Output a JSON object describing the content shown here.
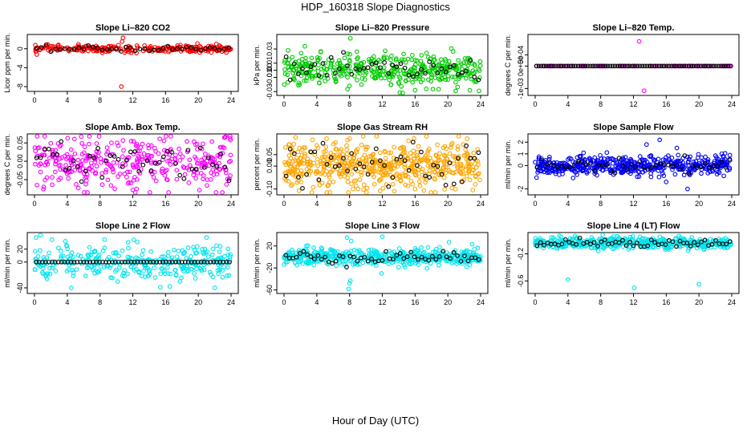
{
  "figure": {
    "title": "HDP_160318  Slope Diagnostics",
    "xlabel": "Hour of Day (UTC)"
  },
  "chart_data": [
    {
      "type": "scatter",
      "title": "Slope Li–820 CO2",
      "ylabel": "Licor ppm per min.",
      "color": "#ff0000",
      "xlim": [
        0,
        24
      ],
      "xticks": [
        "0",
        "4",
        "8",
        "12",
        "16",
        "20",
        "24"
      ],
      "ylim": [
        -8.5,
        2.5
      ],
      "yticks": [
        {
          "v": -8,
          "l": "-8"
        },
        {
          "v": -4,
          "l": "-4"
        },
        {
          "v": 0,
          "l": "0"
        }
      ],
      "n": 260,
      "center": 0.0,
      "spread": 0.35,
      "black_n": 42,
      "black_spread": 0.3,
      "outliers": [
        [
          10.6,
          -8.0
        ],
        [
          10.8,
          2.3
        ],
        [
          10.7,
          1.5
        ],
        [
          11.0,
          -0.8
        ],
        [
          19.9,
          1.1
        ],
        [
          1.6,
          0.9
        ]
      ],
      "grid": false,
      "legend": "none"
    },
    {
      "type": "scatter",
      "title": "Slope Li–820 Pressure",
      "ylabel": "kPa per min.",
      "color": "#00cc00",
      "xlim": [
        0,
        24
      ],
      "xticks": [
        "0",
        "4",
        "8",
        "12",
        "16",
        "20",
        "24"
      ],
      "ylim": [
        -0.032,
        0.047
      ],
      "yticks": [
        {
          "v": -0.03,
          "l": "-0.03"
        },
        {
          "v": -0.01,
          "l": "-0.01"
        },
        {
          "v": 0.0,
          "l": "0.00"
        },
        {
          "v": 0.01,
          "l": "0.01"
        },
        {
          "v": 0.03,
          "l": "0.03"
        }
      ],
      "n": 420,
      "center": 0.0,
      "spread": 0.011,
      "black_n": 48,
      "black_spread": 0.008,
      "outliers": [
        [
          8.1,
          0.045
        ],
        [
          0.5,
          0.028
        ],
        [
          23.8,
          -0.029
        ],
        [
          16.0,
          -0.028
        ],
        [
          8.0,
          -0.022
        ]
      ],
      "grid": false,
      "legend": "none"
    },
    {
      "type": "scatter",
      "title": "Slope Li–820 Temp.",
      "ylabel": "degrees C per min.",
      "color": "#ff00ff",
      "xlim": [
        0,
        24
      ],
      "xticks": [
        "0",
        "4",
        "8",
        "12",
        "16",
        "20",
        "24"
      ],
      "ylim": [
        -0.0012,
        0.0013
      ],
      "yticks": [
        {
          "v": -0.001,
          "l": "-1e-03"
        },
        {
          "v": 0,
          "l": "0e+00"
        },
        {
          "v": 0.0005,
          "l": "5e-04"
        }
      ],
      "n": 80,
      "center": 0.0,
      "spread": 0.0,
      "black_n": 80,
      "black_spread": 0.0,
      "outliers": [
        [
          12.7,
          0.0011
        ],
        [
          13.3,
          -0.0011
        ]
      ],
      "grid": false,
      "legend": "none"
    },
    {
      "type": "scatter",
      "title": "Slope Amb. Box Temp.",
      "ylabel": "degrees C per min.",
      "color": "#ff00ff",
      "xlim": [
        0,
        24
      ],
      "xticks": [
        "0",
        "4",
        "8",
        "12",
        "16",
        "20",
        "24"
      ],
      "ylim": [
        -0.085,
        0.068
      ],
      "yticks": [
        {
          "v": -0.05,
          "l": "-0.05"
        },
        {
          "v": 0.0,
          "l": "0.00"
        },
        {
          "v": 0.05,
          "l": "0.05"
        }
      ],
      "n": 360,
      "center": 0.0,
      "spread": 0.035,
      "black_n": 48,
      "black_spread": 0.025,
      "outliers": [
        [
          12.0,
          -0.078
        ],
        [
          9.8,
          -0.075
        ],
        [
          23.9,
          0.062
        ],
        [
          0.3,
          -0.065
        ]
      ],
      "grid": false,
      "legend": "none"
    },
    {
      "type": "scatter",
      "title": "Slope Gas Stream RH",
      "ylabel": "percent per min.",
      "color": "#ffa500",
      "xlim": [
        0,
        24
      ],
      "xticks": [
        "0",
        "4",
        "8",
        "12",
        "16",
        "20",
        "24"
      ],
      "ylim": [
        -0.115,
        0.13
      ],
      "yticks": [
        {
          "v": -0.1,
          "l": "-0.10"
        },
        {
          "v": 0.0,
          "l": "0.00"
        },
        {
          "v": 0.05,
          "l": "0.05"
        }
      ],
      "n": 560,
      "center": 0.0,
      "spread": 0.05,
      "black_n": 48,
      "black_spread": 0.04,
      "outliers": [
        [
          16.0,
          -0.1
        ],
        [
          5.2,
          0.12
        ],
        [
          8.0,
          0.12
        ],
        [
          1.0,
          -0.08
        ]
      ],
      "grid": false,
      "legend": "none"
    },
    {
      "type": "scatter",
      "title": "Slope Sample Flow",
      "ylabel": "ml/min per min.",
      "color": "#0000ff",
      "xlim": [
        0,
        24
      ],
      "xticks": [
        "0",
        "4",
        "8",
        "12",
        "16",
        "20",
        "24"
      ],
      "ylim": [
        -2.3,
        2.5
      ],
      "yticks": [
        {
          "v": -2,
          "l": "-2"
        },
        {
          "v": 0,
          "l": "0"
        },
        {
          "v": 1,
          "l": "1"
        },
        {
          "v": 2,
          "l": "2"
        }
      ],
      "n": 500,
      "center": 0.0,
      "spread": 0.4,
      "black_n": 48,
      "black_spread": 0.3,
      "outliers": [
        [
          15.2,
          2.2
        ],
        [
          17.3,
          1.5
        ],
        [
          18.6,
          -2.0
        ],
        [
          13.6,
          1.8
        ],
        [
          16.0,
          -1.4
        ]
      ],
      "grid": false,
      "legend": "none"
    },
    {
      "type": "scatter",
      "title": "Slope Line 2 Flow",
      "ylabel": "ml/min per min.",
      "color": "#00e5ee",
      "xlim": [
        0,
        24
      ],
      "xticks": [
        "0",
        "4",
        "8",
        "12",
        "16",
        "20",
        "24"
      ],
      "ylim": [
        -45,
        42
      ],
      "yticks": [
        {
          "v": -40,
          "l": "-40"
        },
        {
          "v": 0,
          "l": "0"
        },
        {
          "v": 20,
          "l": "20"
        }
      ],
      "n": 320,
      "center": 0.0,
      "spread": 14.0,
      "black_n": 62,
      "black_spread": 0.0,
      "outliers": [
        [
          21.0,
          38
        ],
        [
          0.2,
          38
        ],
        [
          22.0,
          -40
        ],
        [
          4.5,
          -40
        ]
      ],
      "grid": false,
      "legend": "none"
    },
    {
      "type": "scatter",
      "title": "Slope Line 3 Flow",
      "ylabel": "ml/min per min.",
      "color": "#00e5ee",
      "xlim": [
        0,
        24
      ],
      "xticks": [
        "0",
        "4",
        "8",
        "12",
        "16",
        "20",
        "24"
      ],
      "ylim": [
        -62,
        40
      ],
      "yticks": [
        {
          "v": -60,
          "l": "-60"
        },
        {
          "v": -20,
          "l": "-20"
        },
        {
          "v": 20,
          "l": "20"
        }
      ],
      "n": 500,
      "center": 0.0,
      "spread": 7.0,
      "black_n": 55,
      "black_spread": 6.0,
      "outliers": [
        [
          7.9,
          -58
        ],
        [
          8.0,
          -48
        ],
        [
          8.1,
          -43
        ],
        [
          7.7,
          35
        ],
        [
          12.0,
          37
        ],
        [
          11.9,
          -30
        ],
        [
          8.2,
          29
        ]
      ],
      "grid": false,
      "legend": "none"
    },
    {
      "type": "scatter",
      "title": "Slope Line 4 (LT) Flow",
      "ylabel": "ml/min per min.",
      "color": "#00e5ee",
      "xlim": [
        0,
        24
      ],
      "xticks": [
        "0",
        "4",
        "8",
        "12",
        "16",
        "20",
        "24"
      ],
      "ylim": [
        -0.75,
        0.08
      ],
      "yticks": [
        {
          "v": -0.6,
          "l": "-0.6"
        },
        {
          "v": -0.2,
          "l": "-0.2"
        }
      ],
      "n": 480,
      "center": -0.04,
      "spread": 0.04,
      "black_n": 55,
      "black_spread": 0.03,
      "outliers": [
        [
          4.0,
          -0.58
        ],
        [
          12.1,
          -0.7
        ],
        [
          20.0,
          -0.65
        ],
        [
          10.0,
          0.06
        ]
      ],
      "grid": false,
      "legend": "none"
    }
  ]
}
